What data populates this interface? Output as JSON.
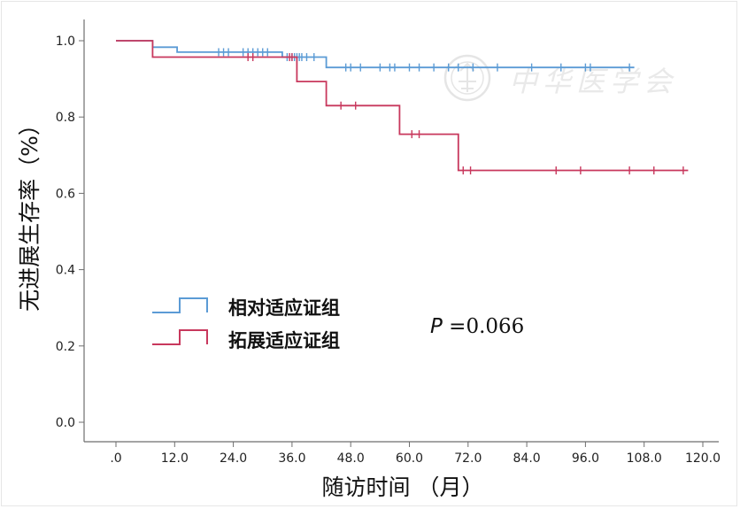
{
  "chart_data": {
    "type": "line",
    "title": "",
    "xlabel": "随访时间 （月）",
    "ylabel": "无进展生存率（%）",
    "xlim": [
      0,
      120
    ],
    "ylim": [
      0,
      1.0
    ],
    "x_ticks": [
      {
        "value": 0,
        "label": ".0"
      },
      {
        "value": 12,
        "label": "12.0"
      },
      {
        "value": 24,
        "label": "24.0"
      },
      {
        "value": 36,
        "label": "36.0"
      },
      {
        "value": 48,
        "label": "48.0"
      },
      {
        "value": 60,
        "label": "60.0"
      },
      {
        "value": 72,
        "label": "72.0"
      },
      {
        "value": 84,
        "label": "84.0"
      },
      {
        "value": 96,
        "label": "96.0"
      },
      {
        "value": 108,
        "label": "108.0"
      },
      {
        "value": 120,
        "label": "120.0"
      }
    ],
    "y_ticks": [
      {
        "value": 0.0,
        "label": "0.0"
      },
      {
        "value": 0.2,
        "label": "0.2"
      },
      {
        "value": 0.4,
        "label": "0.4"
      },
      {
        "value": 0.6,
        "label": "0.6"
      },
      {
        "value": 0.8,
        "label": "0.8"
      },
      {
        "value": 1.0,
        "label": "1.0"
      }
    ],
    "grid": false,
    "legend_position": "center-left",
    "annotation": {
      "italic": "P",
      "text": " =0.066"
    },
    "watermark": "中华医学会",
    "series": [
      {
        "name": "相对适应证组",
        "color": "#5b9bd5",
        "steps": [
          [
            0,
            1.0
          ],
          [
            7.5,
            1.0
          ],
          [
            7.5,
            0.983
          ],
          [
            12.5,
            0.983
          ],
          [
            12.5,
            0.97
          ],
          [
            34,
            0.97
          ],
          [
            34,
            0.957
          ],
          [
            43,
            0.957
          ],
          [
            43,
            0.93
          ],
          [
            106,
            0.93
          ]
        ],
        "censored": [
          [
            21,
            0.97
          ],
          [
            22,
            0.97
          ],
          [
            23,
            0.97
          ],
          [
            26,
            0.97
          ],
          [
            27,
            0.97
          ],
          [
            28,
            0.97
          ],
          [
            29,
            0.97
          ],
          [
            30,
            0.97
          ],
          [
            31,
            0.97
          ],
          [
            35,
            0.957
          ],
          [
            36,
            0.957
          ],
          [
            36.5,
            0.957
          ],
          [
            37,
            0.957
          ],
          [
            37.5,
            0.957
          ],
          [
            38,
            0.957
          ],
          [
            39,
            0.957
          ],
          [
            40.5,
            0.957
          ],
          [
            47,
            0.93
          ],
          [
            48,
            0.93
          ],
          [
            50,
            0.93
          ],
          [
            54,
            0.93
          ],
          [
            56,
            0.93
          ],
          [
            57,
            0.93
          ],
          [
            60,
            0.93
          ],
          [
            62,
            0.93
          ],
          [
            65,
            0.93
          ],
          [
            68,
            0.93
          ],
          [
            70,
            0.93
          ],
          [
            73,
            0.93
          ],
          [
            78,
            0.93
          ],
          [
            85,
            0.93
          ],
          [
            91,
            0.93
          ],
          [
            96,
            0.93
          ],
          [
            97,
            0.93
          ],
          [
            105,
            0.93
          ]
        ]
      },
      {
        "name": "拓展适应证组",
        "color": "#c8385d",
        "steps": [
          [
            0,
            1.0
          ],
          [
            7.5,
            1.0
          ],
          [
            7.5,
            0.957
          ],
          [
            37,
            0.957
          ],
          [
            37,
            0.893
          ],
          [
            43,
            0.893
          ],
          [
            43,
            0.83
          ],
          [
            58,
            0.83
          ],
          [
            58,
            0.755
          ],
          [
            70,
            0.755
          ],
          [
            70,
            0.66
          ],
          [
            117,
            0.66
          ]
        ],
        "censored": [
          [
            27,
            0.957
          ],
          [
            28,
            0.957
          ],
          [
            35.5,
            0.957
          ],
          [
            36,
            0.957
          ],
          [
            46,
            0.83
          ],
          [
            49,
            0.83
          ],
          [
            60.5,
            0.755
          ],
          [
            62,
            0.755
          ],
          [
            71,
            0.66
          ],
          [
            72.5,
            0.66
          ],
          [
            90,
            0.66
          ],
          [
            95,
            0.66
          ],
          [
            105,
            0.66
          ],
          [
            110,
            0.66
          ],
          [
            116,
            0.66
          ]
        ]
      }
    ]
  }
}
